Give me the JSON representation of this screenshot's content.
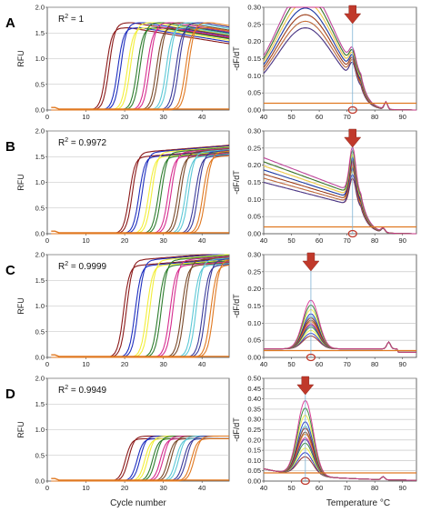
{
  "figure": {
    "panel_letters": [
      "A",
      "B",
      "C",
      "D"
    ],
    "x_axis_left_label": "Cycle number",
    "x_axis_right_label": "Temperature °C"
  },
  "chart_data": [
    {
      "panel": "A",
      "type": "line",
      "ylabel": "RFU",
      "xlim": [
        0,
        47
      ],
      "ylim": [
        0,
        2.0
      ],
      "yticks": [
        0.0,
        0.5,
        1.0,
        1.5,
        2.0
      ],
      "xticks": [
        0,
        10,
        20,
        30,
        40
      ],
      "r2_prefix": "R",
      "r2_sup": "2",
      "r2_value": " = 1",
      "ct": [
        15.5,
        18.5,
        21,
        23.5,
        26,
        28.5,
        31,
        33.5,
        36
      ],
      "plateau": 1.65,
      "decline": true
    },
    {
      "panel": "A-melt",
      "type": "line",
      "ylabel": "-dF/dT",
      "xlim": [
        40,
        95
      ],
      "ylim": [
        0,
        0.3
      ],
      "yticks": [
        0.0,
        0.05,
        0.1,
        0.15,
        0.2,
        0.25,
        0.3
      ],
      "xticks": [
        40,
        50,
        60,
        70,
        80,
        90
      ],
      "peak_temp": 72,
      "peak_marker_arrow": true,
      "peak_marker_circle": true,
      "shape": "broad_high_with_peak_72"
    },
    {
      "panel": "B",
      "type": "line",
      "ylabel": "RFU",
      "xlim": [
        0,
        47
      ],
      "ylim": [
        0,
        2.0
      ],
      "yticks": [
        0.0,
        0.5,
        1.0,
        1.5,
        2.0
      ],
      "xticks": [
        0,
        10,
        20,
        30,
        40
      ],
      "r2_prefix": "R",
      "r2_sup": "2",
      "r2_value": " = 0.9972",
      "ct": [
        21.5,
        24,
        26.5,
        29,
        31.5,
        34,
        36,
        38.5,
        40.5
      ],
      "plateau": 1.55,
      "decline": false
    },
    {
      "panel": "B-melt",
      "type": "line",
      "ylabel": "-dF/dT",
      "xlim": [
        40,
        95
      ],
      "ylim": [
        0,
        0.3
      ],
      "yticks": [
        0.0,
        0.05,
        0.1,
        0.15,
        0.2,
        0.25,
        0.3
      ],
      "xticks": [
        40,
        50,
        60,
        70,
        80,
        90
      ],
      "peak_temp": 72,
      "peak_marker_arrow": true,
      "peak_marker_circle": true,
      "shape": "declining_with_peak_72"
    },
    {
      "panel": "C",
      "type": "line",
      "ylabel": "RFU",
      "xlim": [
        0,
        47
      ],
      "ylim": [
        0,
        2.0
      ],
      "yticks": [
        0.0,
        0.5,
        1.0,
        1.5,
        2.0
      ],
      "xticks": [
        0,
        10,
        20,
        30,
        40
      ],
      "r2_prefix": "R",
      "r2_sup": "2",
      "r2_value": " = 0.9999",
      "ct": [
        20,
        23,
        26,
        29,
        32,
        35,
        38,
        40.5,
        42.5
      ],
      "plateau": 1.85,
      "decline": false
    },
    {
      "panel": "C-melt",
      "type": "line",
      "ylabel": "-dF/dT",
      "xlim": [
        40,
        95
      ],
      "ylim": [
        0,
        0.3
      ],
      "yticks": [
        0.0,
        0.05,
        0.1,
        0.15,
        0.2,
        0.25,
        0.3
      ],
      "xticks": [
        40,
        50,
        60,
        70,
        80,
        90
      ],
      "peak_temp": 57,
      "peak_marker_arrow": true,
      "peak_marker_circle": true,
      "shape": "peak_57"
    },
    {
      "panel": "D",
      "type": "line",
      "ylabel": "RFU",
      "xlim": [
        0,
        47
      ],
      "ylim": [
        0,
        2.0
      ],
      "yticks": [
        0.0,
        0.5,
        1.0,
        1.5,
        2.0
      ],
      "xticks": [
        0,
        10,
        20,
        30,
        40
      ],
      "r2_prefix": "R",
      "r2_sup": "2",
      "r2_value": " = 0.9949",
      "ct": [
        20.5,
        23.5,
        25.5,
        27.5,
        29.5,
        31.5,
        33.5,
        35.5,
        37.5
      ],
      "plateau": 0.85,
      "decline": false
    },
    {
      "panel": "D-melt",
      "type": "line",
      "ylabel": "-dF/dT",
      "xlim": [
        40,
        95
      ],
      "ylim": [
        0,
        0.5
      ],
      "yticks": [
        0.0,
        0.05,
        0.1,
        0.15,
        0.2,
        0.25,
        0.3,
        0.35,
        0.4,
        0.45,
        0.5
      ],
      "xticks": [
        40,
        50,
        60,
        70,
        80,
        90
      ],
      "peak_temp": 55,
      "peak_marker_arrow": true,
      "peak_marker_circle": true,
      "shape": "tall_peak_55"
    }
  ],
  "series_colors": [
    "#8b1a1a",
    "#1e2fbf",
    "#f2ee3a",
    "#2e7d2e",
    "#d62d8f",
    "#7a4a2a",
    "#5cc8d6",
    "#3b3b9b",
    "#e07820"
  ],
  "marker_color": "#c0392b"
}
